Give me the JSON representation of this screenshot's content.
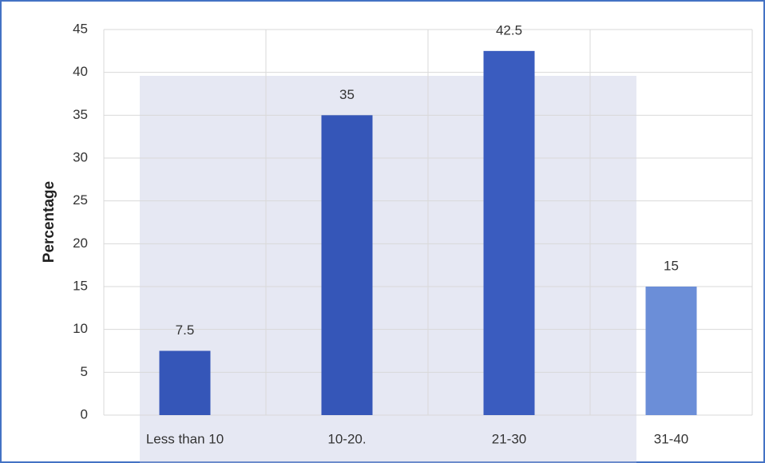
{
  "chart_data": {
    "type": "bar",
    "y_label": "Percentage",
    "categories": [
      "Less than 10",
      "10-20.",
      "21-30",
      "31-40"
    ],
    "values": [
      7.5,
      35,
      42.5,
      15
    ],
    "colors": [
      "#3556b8",
      "#3556b8",
      "#3a5cbf",
      "#6b8ed8"
    ],
    "ylim": [
      0,
      45
    ],
    "yticks": [
      0,
      5,
      10,
      15,
      20,
      25,
      30,
      35,
      40,
      45
    ],
    "grid": true
  }
}
